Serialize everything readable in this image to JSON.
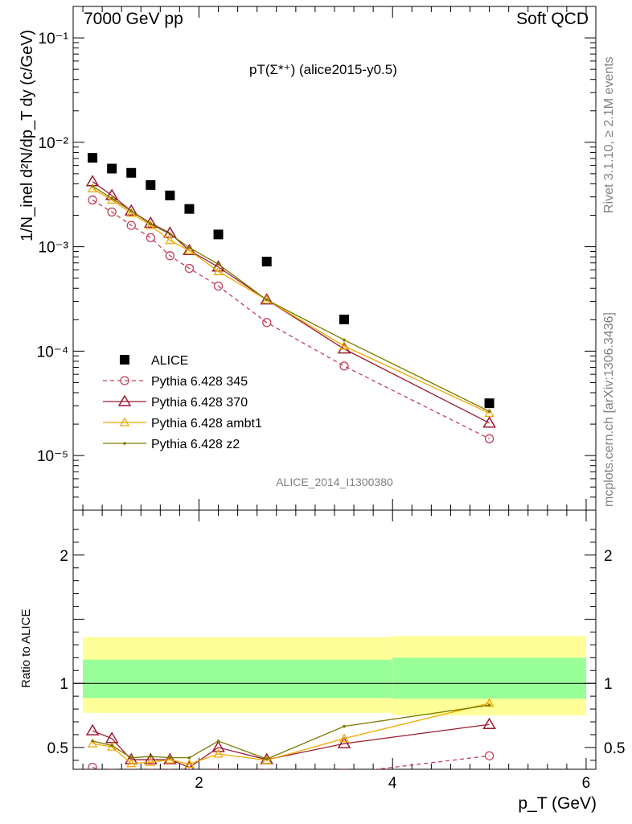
{
  "header": {
    "left": "7000 GeV pp",
    "right": "Soft QCD"
  },
  "side": {
    "rivet": "Rivet 3.1.10, ≥ 2.1M events",
    "mcplots": "mcplots.cern.ch [arXiv:1306.3436]"
  },
  "plot_title": "pT(Σ*⁺) (alice2015-y0.5)",
  "watermark": "ALICE_2014_I1300380",
  "ylabel_main": "1/N_inel d²N/dp_T dy (c/GeV)",
  "ylabel_ratio": "Ratio to ALICE",
  "xlabel": "p_T (GeV)",
  "chart_data": [
    {
      "type": "scatter",
      "panel": "main",
      "yscale": "log",
      "xlim": [
        0.7,
        6.1
      ],
      "ylim": [
        3e-06,
        0.2
      ],
      "x": [
        0.9,
        1.1,
        1.3,
        1.5,
        1.7,
        1.9,
        2.2,
        2.7,
        3.5,
        5.0
      ],
      "series": [
        {
          "name": "ALICE",
          "color": "#000000",
          "marker": "square",
          "values": [
            0.0071,
            0.0056,
            0.0051,
            0.0039,
            0.0031,
            0.0023,
            0.00131,
            0.00072,
            0.000201,
            3.17e-05
          ]
        },
        {
          "name": "Pythia 6.428 345",
          "color": "#c0405a",
          "marker": "circle",
          "dash": true,
          "values": [
            0.0028,
            0.00215,
            0.0016,
            0.00122,
            0.00082,
            0.00062,
            0.00042,
            0.000188,
            7.2e-05,
            1.45e-05
          ]
        },
        {
          "name": "Pythia 6.428 370",
          "color": "#9b1b30",
          "marker": "triangle",
          "values": [
            0.0042,
            0.0031,
            0.0022,
            0.00168,
            0.00135,
            0.00092,
            0.00064,
            0.00031,
            0.000105,
            2.05e-05
          ]
        },
        {
          "name": "Pythia 6.428 ambt1",
          "color": "#f0a800",
          "marker": "triangle-small",
          "values": [
            0.0036,
            0.0028,
            0.0021,
            0.0016,
            0.00115,
            0.00092,
            0.00058,
            0.00031,
            0.000112,
            2.55e-05
          ]
        },
        {
          "name": "Pythia 6.428 z2",
          "color": "#7a7a00",
          "marker": "dot",
          "values": [
            0.0038,
            0.0029,
            0.0022,
            0.00165,
            0.00132,
            0.00098,
            0.00068,
            0.00031,
            0.000128,
            2.65e-05
          ]
        }
      ],
      "yticks": [
        "10⁻⁵",
        "10⁻⁴",
        "10⁻³",
        "10⁻²",
        "10⁻¹"
      ]
    },
    {
      "type": "line",
      "panel": "ratio",
      "xlim": [
        0.7,
        6.1
      ],
      "ylim": [
        0.33,
        2.35
      ],
      "xticks": [
        "2",
        "4",
        "6"
      ],
      "yticks": [
        "0.5",
        "1",
        "2"
      ],
      "bands": [
        {
          "x": [
            0.8,
            4.0
          ],
          "yellow": [
            0.77,
            1.36
          ],
          "green": [
            0.885,
            1.185
          ]
        },
        {
          "x": [
            4.0,
            6.0
          ],
          "yellow": [
            0.75,
            1.37
          ],
          "green": [
            0.88,
            1.2
          ]
        }
      ],
      "x": [
        0.9,
        1.1,
        1.3,
        1.5,
        1.7,
        1.9,
        2.2,
        2.7,
        3.5,
        5.0
      ],
      "series": [
        {
          "name": "Pythia 6.428 345",
          "color": "#c0405a",
          "dash": true,
          "values": [
            0.345,
            0.3,
            0.3,
            0.3,
            0.3,
            0.3,
            0.3,
            0.3,
            0.3,
            0.435
          ]
        },
        {
          "name": "Pythia 6.428 370",
          "color": "#9b1b30",
          "values": [
            0.63,
            0.57,
            0.405,
            0.405,
            0.405,
            0.345,
            0.5,
            0.405,
            0.53,
            0.68
          ]
        },
        {
          "name": "Pythia 6.428 ambt1",
          "color": "#f0a800",
          "values": [
            0.53,
            0.505,
            0.375,
            0.385,
            0.405,
            0.37,
            0.45,
            0.4,
            0.57,
            0.845
          ]
        },
        {
          "name": "Pythia 6.428 z2",
          "color": "#7a7a00",
          "values": [
            0.55,
            0.515,
            0.42,
            0.43,
            0.42,
            0.42,
            0.55,
            0.41,
            0.665,
            0.83
          ]
        }
      ]
    }
  ]
}
